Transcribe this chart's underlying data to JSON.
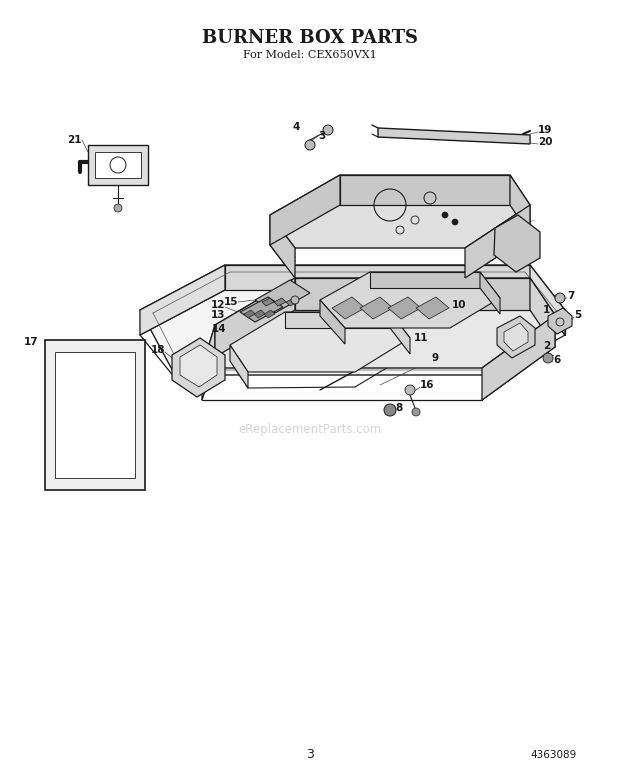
{
  "title": "BURNER BOX PARTS",
  "subtitle": "For Model: CEX650VX1",
  "page_number": "3",
  "part_number": "4363089",
  "bg_color": "#ffffff",
  "line_color": "#1a1a1a",
  "watermark": "eReplacementParts.com",
  "figsize": [
    6.2,
    7.82
  ],
  "dpi": 100
}
